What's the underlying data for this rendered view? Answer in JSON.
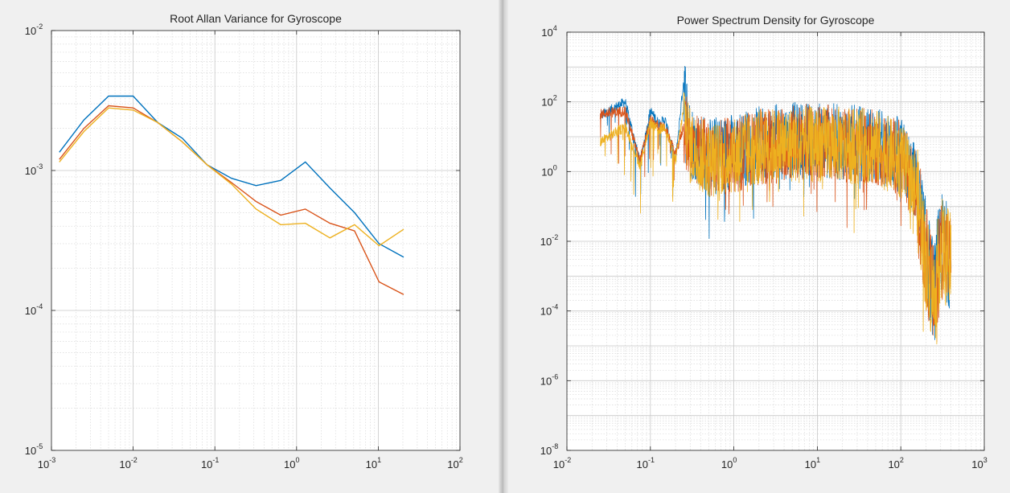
{
  "chart_data": [
    {
      "type": "line",
      "title": "Root Allan Variance for Gyroscope",
      "xlabel": "",
      "ylabel": "",
      "xscale": "log",
      "yscale": "log",
      "xlim": [
        0.001,
        100
      ],
      "ylim": [
        1e-05,
        0.01
      ],
      "grid": true,
      "legend": "none",
      "x_ticks": [
        "10^-3",
        "10^-2",
        "10^-1",
        "10^0",
        "10^1",
        "10^2"
      ],
      "y_ticks": [
        "10^-5",
        "10^-4",
        "10^-3",
        "10^-2"
      ],
      "colors": [
        "#0072bd",
        "#d95319",
        "#edb120"
      ],
      "series": [
        {
          "color": "#0072bd",
          "x": [
            0.00125,
            0.0025,
            0.005,
            0.01,
            0.02,
            0.04,
            0.08,
            0.16,
            0.32,
            0.64,
            1.28,
            2.56,
            5.12,
            10.24,
            20.48
          ],
          "y": [
            0.00135,
            0.0023,
            0.0034,
            0.0034,
            0.0022,
            0.0017,
            0.0011,
            0.00088,
            0.00078,
            0.00085,
            0.00115,
            0.00075,
            0.0005,
            0.0003,
            0.00024
          ]
        },
        {
          "color": "#d95319",
          "x": [
            0.00125,
            0.0025,
            0.005,
            0.01,
            0.02,
            0.04,
            0.08,
            0.16,
            0.32,
            0.64,
            1.28,
            2.56,
            5.12,
            10.24,
            20.48
          ],
          "y": [
            0.0012,
            0.002,
            0.0029,
            0.0028,
            0.0022,
            0.0016,
            0.0011,
            0.00082,
            0.0006,
            0.00048,
            0.00053,
            0.00042,
            0.00037,
            0.00016,
            0.00013
          ]
        },
        {
          "color": "#edb120",
          "x": [
            0.00125,
            0.0025,
            0.005,
            0.01,
            0.02,
            0.04,
            0.08,
            0.16,
            0.32,
            0.64,
            1.28,
            2.56,
            5.12,
            10.24,
            20.48
          ],
          "y": [
            0.00115,
            0.0019,
            0.0028,
            0.0027,
            0.0022,
            0.0016,
            0.0011,
            0.0008,
            0.00053,
            0.00041,
            0.00042,
            0.00033,
            0.00041,
            0.00029,
            0.00038
          ]
        }
      ]
    },
    {
      "type": "line",
      "title": "Power Spectrum Density for Gyroscope",
      "xlabel": "",
      "ylabel": "",
      "xscale": "log",
      "yscale": "log",
      "xlim": [
        0.01,
        1000
      ],
      "ylim": [
        1e-08,
        10000
      ],
      "grid": true,
      "legend": "none",
      "x_ticks": [
        "10^-2",
        "10^-1",
        "10^0",
        "10^1",
        "10^2",
        "10^3"
      ],
      "y_ticks": [
        "10^-8",
        "10^-6",
        "10^-4",
        "10^-2",
        "10^0",
        "10^2",
        "10^4"
      ],
      "colors": [
        "#0072bd",
        "#d95319",
        "#edb120"
      ],
      "x_range_data": [
        0.025,
        400
      ],
      "series": [
        {
          "color": "#0072bd",
          "x": [
            0.025,
            0.05,
            0.075,
            0.1,
            0.125,
            0.15,
            0.2,
            0.25,
            0.3,
            0.4,
            0.5,
            1,
            2,
            5,
            10,
            20,
            50,
            100,
            150,
            200,
            250,
            300,
            400
          ],
          "y": [
            40,
            100,
            1.8,
            55,
            25,
            30,
            2,
            400,
            8,
            4,
            3,
            4,
            6,
            8,
            8,
            7,
            6,
            3,
            0.5,
            0.005,
            0.0003,
            0.01,
            0.003
          ]
        },
        {
          "color": "#d95319",
          "x": [
            0.025,
            0.05,
            0.075,
            0.1,
            0.125,
            0.15,
            0.2,
            0.25,
            0.3,
            0.4,
            0.5,
            1,
            2,
            5,
            10,
            20,
            50,
            100,
            150,
            200,
            250,
            300,
            400
          ],
          "y": [
            45,
            55,
            2,
            30,
            20,
            18,
            3,
            20,
            6,
            4,
            2.5,
            3,
            5,
            7,
            7,
            6,
            5,
            2.5,
            0.4,
            0.004,
            0.0002,
            0.008,
            0.002
          ]
        },
        {
          "color": "#edb120",
          "x": [
            0.025,
            0.05,
            0.075,
            0.1,
            0.125,
            0.15,
            0.2,
            0.25,
            0.3,
            0.4,
            0.5,
            1,
            2,
            5,
            10,
            20,
            50,
            100,
            150,
            200,
            250,
            300,
            400
          ],
          "y": [
            7,
            20,
            1.5,
            25,
            15,
            20,
            2,
            60,
            5,
            3,
            2,
            3,
            5,
            6,
            6,
            6,
            5,
            2,
            0.4,
            0.003,
            0.0002,
            0.007,
            0.002
          ]
        }
      ]
    }
  ]
}
